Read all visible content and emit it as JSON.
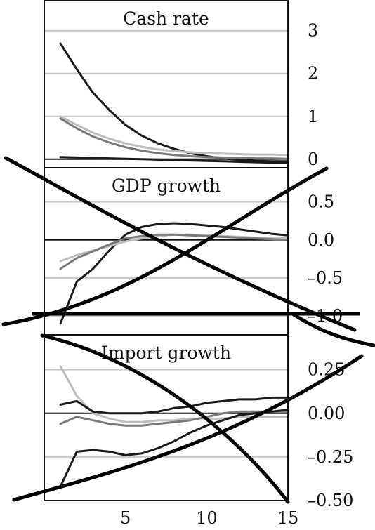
{
  "chart_data": [
    {
      "type": "line",
      "title": "Cash rate",
      "x": [
        1,
        2,
        3,
        4,
        5,
        6,
        7,
        8,
        9,
        10,
        11,
        12,
        13,
        14,
        15
      ],
      "ylim": [
        -0.2,
        3.7
      ],
      "yticks": [
        0,
        1,
        2,
        3
      ],
      "ytick_labels": [
        "0",
        "1",
        "2",
        "3"
      ],
      "grid": true,
      "series": [
        {
          "color": "#1a1a1a",
          "values": [
            2.7,
            2.1,
            1.55,
            1.15,
            0.8,
            0.55,
            0.37,
            0.24,
            0.14,
            0.07,
            0.02,
            -0.02,
            -0.04,
            -0.05,
            -0.05
          ]
        },
        {
          "color": "#bdbdbd",
          "values": [
            1.0,
            0.8,
            0.62,
            0.48,
            0.37,
            0.29,
            0.23,
            0.19,
            0.16,
            0.14,
            0.13,
            0.12,
            0.11,
            0.11,
            0.1
          ]
        },
        {
          "color": "#7a7a7a",
          "values": [
            0.95,
            0.72,
            0.53,
            0.39,
            0.28,
            0.2,
            0.14,
            0.1,
            0.07,
            0.05,
            0.04,
            0.03,
            0.02,
            0.02,
            0.01
          ]
        },
        {
          "color": "#1a1a1a",
          "values": [
            0.05,
            0.04,
            0.03,
            0.02,
            0.01,
            0.0,
            -0.01,
            -0.02,
            -0.03,
            -0.04,
            -0.05,
            -0.06,
            -0.07,
            -0.08,
            -0.08
          ]
        }
      ]
    },
    {
      "type": "line",
      "title": "GDP growth",
      "x": [
        1,
        2,
        3,
        4,
        5,
        6,
        7,
        8,
        9,
        10,
        11,
        12,
        13,
        14,
        15
      ],
      "ylim": [
        -1.25,
        0.95
      ],
      "yticks": [
        0.5,
        0.0,
        -0.5,
        -1.0
      ],
      "ytick_labels": [
        "0.5",
        "0.0",
        "–0.5",
        "–1.0"
      ],
      "grid": true,
      "series": [
        {
          "color": "#1a1a1a",
          "values": [
            -1.1,
            -0.55,
            -0.38,
            -0.14,
            0.07,
            0.17,
            0.21,
            0.22,
            0.21,
            0.19,
            0.17,
            0.14,
            0.11,
            0.08,
            0.06
          ]
        },
        {
          "color": "#bdbdbd",
          "values": [
            -0.28,
            -0.2,
            -0.14,
            -0.08,
            -0.02,
            0.02,
            0.05,
            0.07,
            0.07,
            0.06,
            0.05,
            0.04,
            0.03,
            0.02,
            0.02
          ]
        },
        {
          "color": "#7a7a7a",
          "values": [
            -0.38,
            -0.24,
            -0.15,
            -0.06,
            0.02,
            0.05,
            0.07,
            0.07,
            0.06,
            0.05,
            0.04,
            0.03,
            0.02,
            0.01,
            0.0
          ]
        }
      ]
    },
    {
      "type": "line",
      "title": "Import growth",
      "xlim": [
        0,
        15
      ],
      "xticks": [
        5,
        10,
        15
      ],
      "xtick_labels": [
        "5",
        "10",
        "15"
      ],
      "x": [
        1,
        2,
        3,
        4,
        5,
        6,
        7,
        8,
        9,
        10,
        11,
        12,
        13,
        14,
        15
      ],
      "ylim": [
        -0.5,
        0.45
      ],
      "yticks": [
        0.25,
        0.0,
        -0.25,
        -0.5
      ],
      "ytick_labels": [
        "0.25",
        "0.00",
        "–0.25",
        "–0.50"
      ],
      "grid": true,
      "series": [
        {
          "color": "#bdbdbd",
          "values": [
            0.27,
            0.1,
            0.0,
            -0.03,
            -0.05,
            -0.05,
            -0.04,
            -0.04,
            -0.03,
            -0.03,
            -0.03,
            -0.02,
            -0.02,
            -0.02,
            -0.02
          ]
        },
        {
          "color": "#1a1a1a",
          "values": [
            0.05,
            0.07,
            0.01,
            0.0,
            0.0,
            0.0,
            0.01,
            0.03,
            0.04,
            0.06,
            0.07,
            0.08,
            0.08,
            0.09,
            0.09
          ]
        },
        {
          "color": "#7a7a7a",
          "values": [
            -0.06,
            -0.02,
            -0.04,
            -0.06,
            -0.07,
            -0.07,
            -0.06,
            -0.05,
            -0.04,
            -0.02,
            0.0,
            0.01,
            0.01,
            0.01,
            0.01
          ]
        },
        {
          "color": "#1a1a1a",
          "values": [
            -0.42,
            -0.22,
            -0.21,
            -0.22,
            -0.24,
            -0.23,
            -0.2,
            -0.16,
            -0.11,
            -0.07,
            -0.04,
            -0.01,
            0.0,
            0.01,
            0.02
          ]
        }
      ]
    }
  ]
}
